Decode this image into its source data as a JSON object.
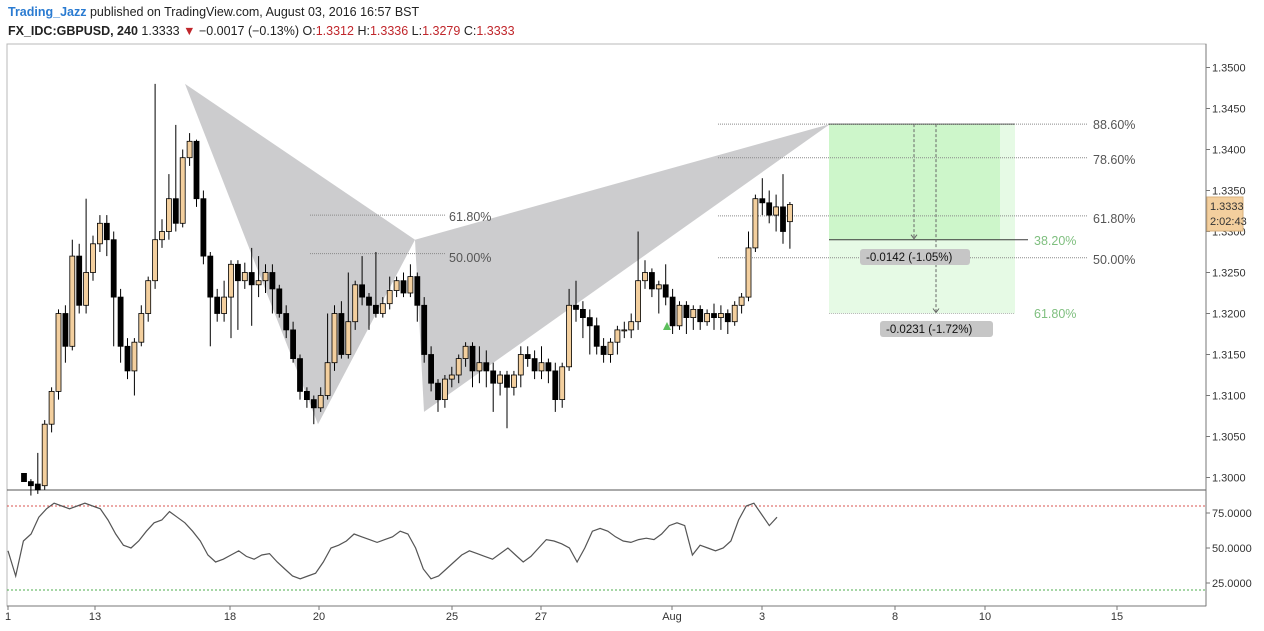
{
  "header": {
    "author": "Trading_Jazz",
    "published_text": "published on TradingView.com, August 03, 2016 16:57 BST",
    "symbol": "FX_IDC:GBPUSD, 240",
    "last": "1.3333",
    "change": "−0.0017 (−0.13%)",
    "o_label": "O:",
    "o": "1.3312",
    "h_label": "H:",
    "h": "1.3336",
    "l_label": "L:",
    "l": "1.3279",
    "c_label": "C:",
    "c": "1.3333"
  },
  "price_badge": {
    "price": "1.3333",
    "countdown": "2:02:43"
  },
  "x_labels": [
    "1",
    "13",
    "18",
    "20",
    "25",
    "27",
    "Aug",
    "3",
    "8",
    "10",
    "15"
  ],
  "y_labels": [
    "1.3500",
    "1.3450",
    "1.3400",
    "1.3350",
    "1.3300",
    "1.3250",
    "1.3200",
    "1.3150",
    "1.3100",
    "1.3050",
    "1.3000"
  ],
  "rsi_labels": [
    "75.0000",
    "50.0000",
    "25.0000"
  ],
  "fib_left": [
    "61.80%",
    "50.00%"
  ],
  "fib_right": [
    "88.60%",
    "78.60%",
    "61.80%",
    "50.00%"
  ],
  "fib_targets": [
    "38.20%",
    "61.80%"
  ],
  "measure_boxes": [
    "-0.0142 (-1.05%)",
    "-0.0231 (-1.72%)"
  ],
  "colors": {
    "up": "#f3cf9e",
    "down": "#000000",
    "pattern": "#c9c9cb",
    "target_fill": "#c8f5c6",
    "rsi_line": "#555555"
  },
  "chart_data": {
    "type": "candlestick",
    "symbol": "FX_IDC:GBPUSD",
    "interval": "240",
    "ylim": [
      1.2978,
      1.3523
    ],
    "y_ticks": [
      1.3,
      1.305,
      1.31,
      1.315,
      1.32,
      1.325,
      1.33,
      1.335,
      1.34,
      1.345,
      1.35
    ],
    "last_price": 1.3333,
    "candles": [
      [
        1.3005,
        1.2995,
        1.2995,
        1.3
      ],
      [
        1.2995,
        1.299,
        1.2978,
        1.2998
      ],
      [
        1.2992,
        1.2985,
        1.298,
        1.303
      ],
      [
        1.299,
        1.3065,
        1.2985,
        1.307
      ],
      [
        1.3065,
        1.3105,
        1.3055,
        1.311
      ],
      [
        1.3105,
        1.32,
        1.3095,
        1.3205
      ],
      [
        1.32,
        1.316,
        1.314,
        1.321
      ],
      [
        1.316,
        1.327,
        1.3155,
        1.329
      ],
      [
        1.327,
        1.321,
        1.32,
        1.3285
      ],
      [
        1.321,
        1.325,
        1.32,
        1.334
      ],
      [
        1.325,
        1.3285,
        1.324,
        1.3295
      ],
      [
        1.3285,
        1.331,
        1.3275,
        1.332
      ],
      [
        1.331,
        1.329,
        1.327,
        1.332
      ],
      [
        1.329,
        1.322,
        1.316,
        1.33
      ],
      [
        1.322,
        1.316,
        1.314,
        1.323
      ],
      [
        1.316,
        1.313,
        1.312,
        1.317
      ],
      [
        1.313,
        1.3165,
        1.31,
        1.317
      ],
      [
        1.3165,
        1.32,
        1.316,
        1.321
      ],
      [
        1.32,
        1.324,
        1.319,
        1.3245
      ],
      [
        1.324,
        1.329,
        1.323,
        1.348
      ],
      [
        1.329,
        1.33,
        1.328,
        1.3315
      ],
      [
        1.33,
        1.334,
        1.329,
        1.337
      ],
      [
        1.334,
        1.331,
        1.33,
        1.343
      ],
      [
        1.331,
        1.339,
        1.3305,
        1.34
      ],
      [
        1.339,
        1.341,
        1.338,
        1.342
      ],
      [
        1.341,
        1.334,
        1.333,
        1.3412
      ],
      [
        1.334,
        1.327,
        1.326,
        1.335
      ],
      [
        1.327,
        1.322,
        1.316,
        1.3275
      ],
      [
        1.322,
        1.32,
        1.319,
        1.323
      ],
      [
        1.32,
        1.322,
        1.319,
        1.324
      ],
      [
        1.322,
        1.326,
        1.317,
        1.3265
      ],
      [
        1.326,
        1.324,
        1.318,
        1.3265
      ],
      [
        1.324,
        1.325,
        1.323,
        1.3262
      ],
      [
        1.325,
        1.3235,
        1.3185,
        1.328
      ],
      [
        1.3235,
        1.324,
        1.322,
        1.327
      ],
      [
        1.324,
        1.325,
        1.3225,
        1.326
      ],
      [
        1.325,
        1.323,
        1.32,
        1.326
      ],
      [
        1.323,
        1.32,
        1.3195,
        1.3235
      ],
      [
        1.32,
        1.318,
        1.317,
        1.321
      ],
      [
        1.318,
        1.3145,
        1.314,
        1.319
      ],
      [
        1.3145,
        1.3105,
        1.3095,
        1.315
      ],
      [
        1.3105,
        1.3095,
        1.3085,
        1.311
      ],
      [
        1.3095,
        1.3085,
        1.3065,
        1.31
      ],
      [
        1.3085,
        1.31,
        1.308,
        1.311
      ],
      [
        1.31,
        1.314,
        1.3095,
        1.32
      ],
      [
        1.314,
        1.32,
        1.313,
        1.321
      ],
      [
        1.32,
        1.315,
        1.3145,
        1.3215
      ],
      [
        1.315,
        1.319,
        1.3145,
        1.325
      ],
      [
        1.319,
        1.3235,
        1.318,
        1.324
      ],
      [
        1.3235,
        1.322,
        1.321,
        1.327
      ],
      [
        1.322,
        1.321,
        1.318,
        1.3225
      ],
      [
        1.321,
        1.32,
        1.3195,
        1.3275
      ],
      [
        1.32,
        1.3212,
        1.3195,
        1.322
      ],
      [
        1.3212,
        1.3228,
        1.3205,
        1.3245
      ],
      [
        1.3228,
        1.324,
        1.322,
        1.3245
      ],
      [
        1.324,
        1.3225,
        1.322,
        1.325
      ],
      [
        1.3225,
        1.3245,
        1.322,
        1.326
      ],
      [
        1.3245,
        1.321,
        1.319,
        1.325
      ],
      [
        1.321,
        1.315,
        1.314,
        1.322
      ],
      [
        1.315,
        1.3115,
        1.3105,
        1.316
      ],
      [
        1.3115,
        1.3095,
        1.308,
        1.312
      ],
      [
        1.3095,
        1.312,
        1.3085,
        1.3125
      ],
      [
        1.312,
        1.3125,
        1.311,
        1.3135
      ],
      [
        1.3125,
        1.3145,
        1.3115,
        1.315
      ],
      [
        1.3145,
        1.316,
        1.3135,
        1.3165
      ],
      [
        1.316,
        1.313,
        1.311,
        1.3165
      ],
      [
        1.313,
        1.314,
        1.3115,
        1.316
      ],
      [
        1.314,
        1.313,
        1.311,
        1.3155
      ],
      [
        1.313,
        1.3115,
        1.308,
        1.314
      ],
      [
        1.3115,
        1.3125,
        1.31,
        1.313
      ],
      [
        1.3125,
        1.311,
        1.306,
        1.313
      ],
      [
        1.311,
        1.3125,
        1.31,
        1.313
      ],
      [
        1.3125,
        1.315,
        1.311,
        1.316
      ],
      [
        1.315,
        1.3145,
        1.3135,
        1.316
      ],
      [
        1.3145,
        1.313,
        1.312,
        1.3155
      ],
      [
        1.313,
        1.314,
        1.312,
        1.316
      ],
      [
        1.314,
        1.313,
        1.3115,
        1.3145
      ],
      [
        1.313,
        1.3095,
        1.308,
        1.314
      ],
      [
        1.3095,
        1.3135,
        1.3085,
        1.314
      ],
      [
        1.3135,
        1.321,
        1.313,
        1.323
      ],
      [
        1.321,
        1.3205,
        1.319,
        1.324
      ],
      [
        1.3205,
        1.3195,
        1.317,
        1.3215
      ],
      [
        1.3195,
        1.3185,
        1.315,
        1.3205
      ],
      [
        1.3185,
        1.316,
        1.315,
        1.3195
      ],
      [
        1.316,
        1.315,
        1.314,
        1.317
      ],
      [
        1.315,
        1.3165,
        1.314,
        1.317
      ],
      [
        1.3165,
        1.318,
        1.315,
        1.3185
      ],
      [
        1.318,
        1.318,
        1.317,
        1.319
      ],
      [
        1.318,
        1.319,
        1.317,
        1.32
      ],
      [
        1.319,
        1.324,
        1.318,
        1.33
      ],
      [
        1.324,
        1.325,
        1.323,
        1.3265
      ],
      [
        1.325,
        1.323,
        1.322,
        1.3255
      ],
      [
        1.323,
        1.3235,
        1.32,
        1.324
      ],
      [
        1.3235,
        1.322,
        1.321,
        1.326
      ],
      [
        1.322,
        1.3185,
        1.3175,
        1.323
      ],
      [
        1.3185,
        1.321,
        1.318,
        1.3215
      ],
      [
        1.321,
        1.3195,
        1.3175,
        1.3215
      ],
      [
        1.3195,
        1.3205,
        1.318,
        1.321
      ],
      [
        1.3205,
        1.319,
        1.318,
        1.321
      ],
      [
        1.319,
        1.32,
        1.3185,
        1.3205
      ],
      [
        1.32,
        1.3195,
        1.318,
        1.3212
      ],
      [
        1.3195,
        1.32,
        1.318,
        1.321
      ],
      [
        1.32,
        1.319,
        1.3175,
        1.3205
      ],
      [
        1.319,
        1.321,
        1.3185,
        1.3215
      ],
      [
        1.321,
        1.322,
        1.32,
        1.3225
      ],
      [
        1.322,
        1.328,
        1.3215,
        1.33
      ],
      [
        1.328,
        1.334,
        1.3275,
        1.3345
      ],
      [
        1.334,
        1.3335,
        1.332,
        1.3365
      ],
      [
        1.3335,
        1.332,
        1.331,
        1.335
      ],
      [
        1.332,
        1.333,
        1.33,
        1.3345
      ],
      [
        1.333,
        1.33,
        1.3285,
        1.337
      ],
      [
        1.3312,
        1.3333,
        1.3279,
        1.3336
      ]
    ],
    "harmonic_pattern": {
      "X": 1.348,
      "A": 1.3065,
      "B": 1.329,
      "C": 1.308,
      "D": 1.3431
    },
    "fib_left_levels": [
      1.332,
      1.3273
    ],
    "fib_right_levels": [
      1.3431,
      1.339,
      1.3319,
      1.3268
    ],
    "targets": [
      1.329,
      1.32
    ],
    "rsi": {
      "ylim": [
        10,
        90
      ],
      "overbought": 80,
      "oversold": 20,
      "ticks": [
        25,
        50,
        75
      ],
      "values": [
        48,
        30,
        55,
        60,
        72,
        78,
        82,
        80,
        78,
        80,
        82,
        80,
        78,
        70,
        60,
        52,
        50,
        55,
        62,
        68,
        70,
        76,
        72,
        68,
        62,
        55,
        45,
        40,
        42,
        45,
        48,
        44,
        42,
        45,
        46,
        40,
        35,
        30,
        28,
        30,
        32,
        40,
        50,
        52,
        55,
        60,
        58,
        56,
        54,
        56,
        58,
        62,
        60,
        50,
        35,
        28,
        30,
        35,
        40,
        45,
        48,
        46,
        44,
        42,
        46,
        50,
        45,
        40,
        44,
        50,
        56,
        55,
        53,
        50,
        40,
        50,
        62,
        64,
        62,
        58,
        55,
        54,
        56,
        57,
        56,
        60,
        66,
        68,
        66,
        45,
        52,
        50,
        48,
        50,
        55,
        70,
        80,
        82,
        74,
        66,
        72
      ]
    }
  }
}
